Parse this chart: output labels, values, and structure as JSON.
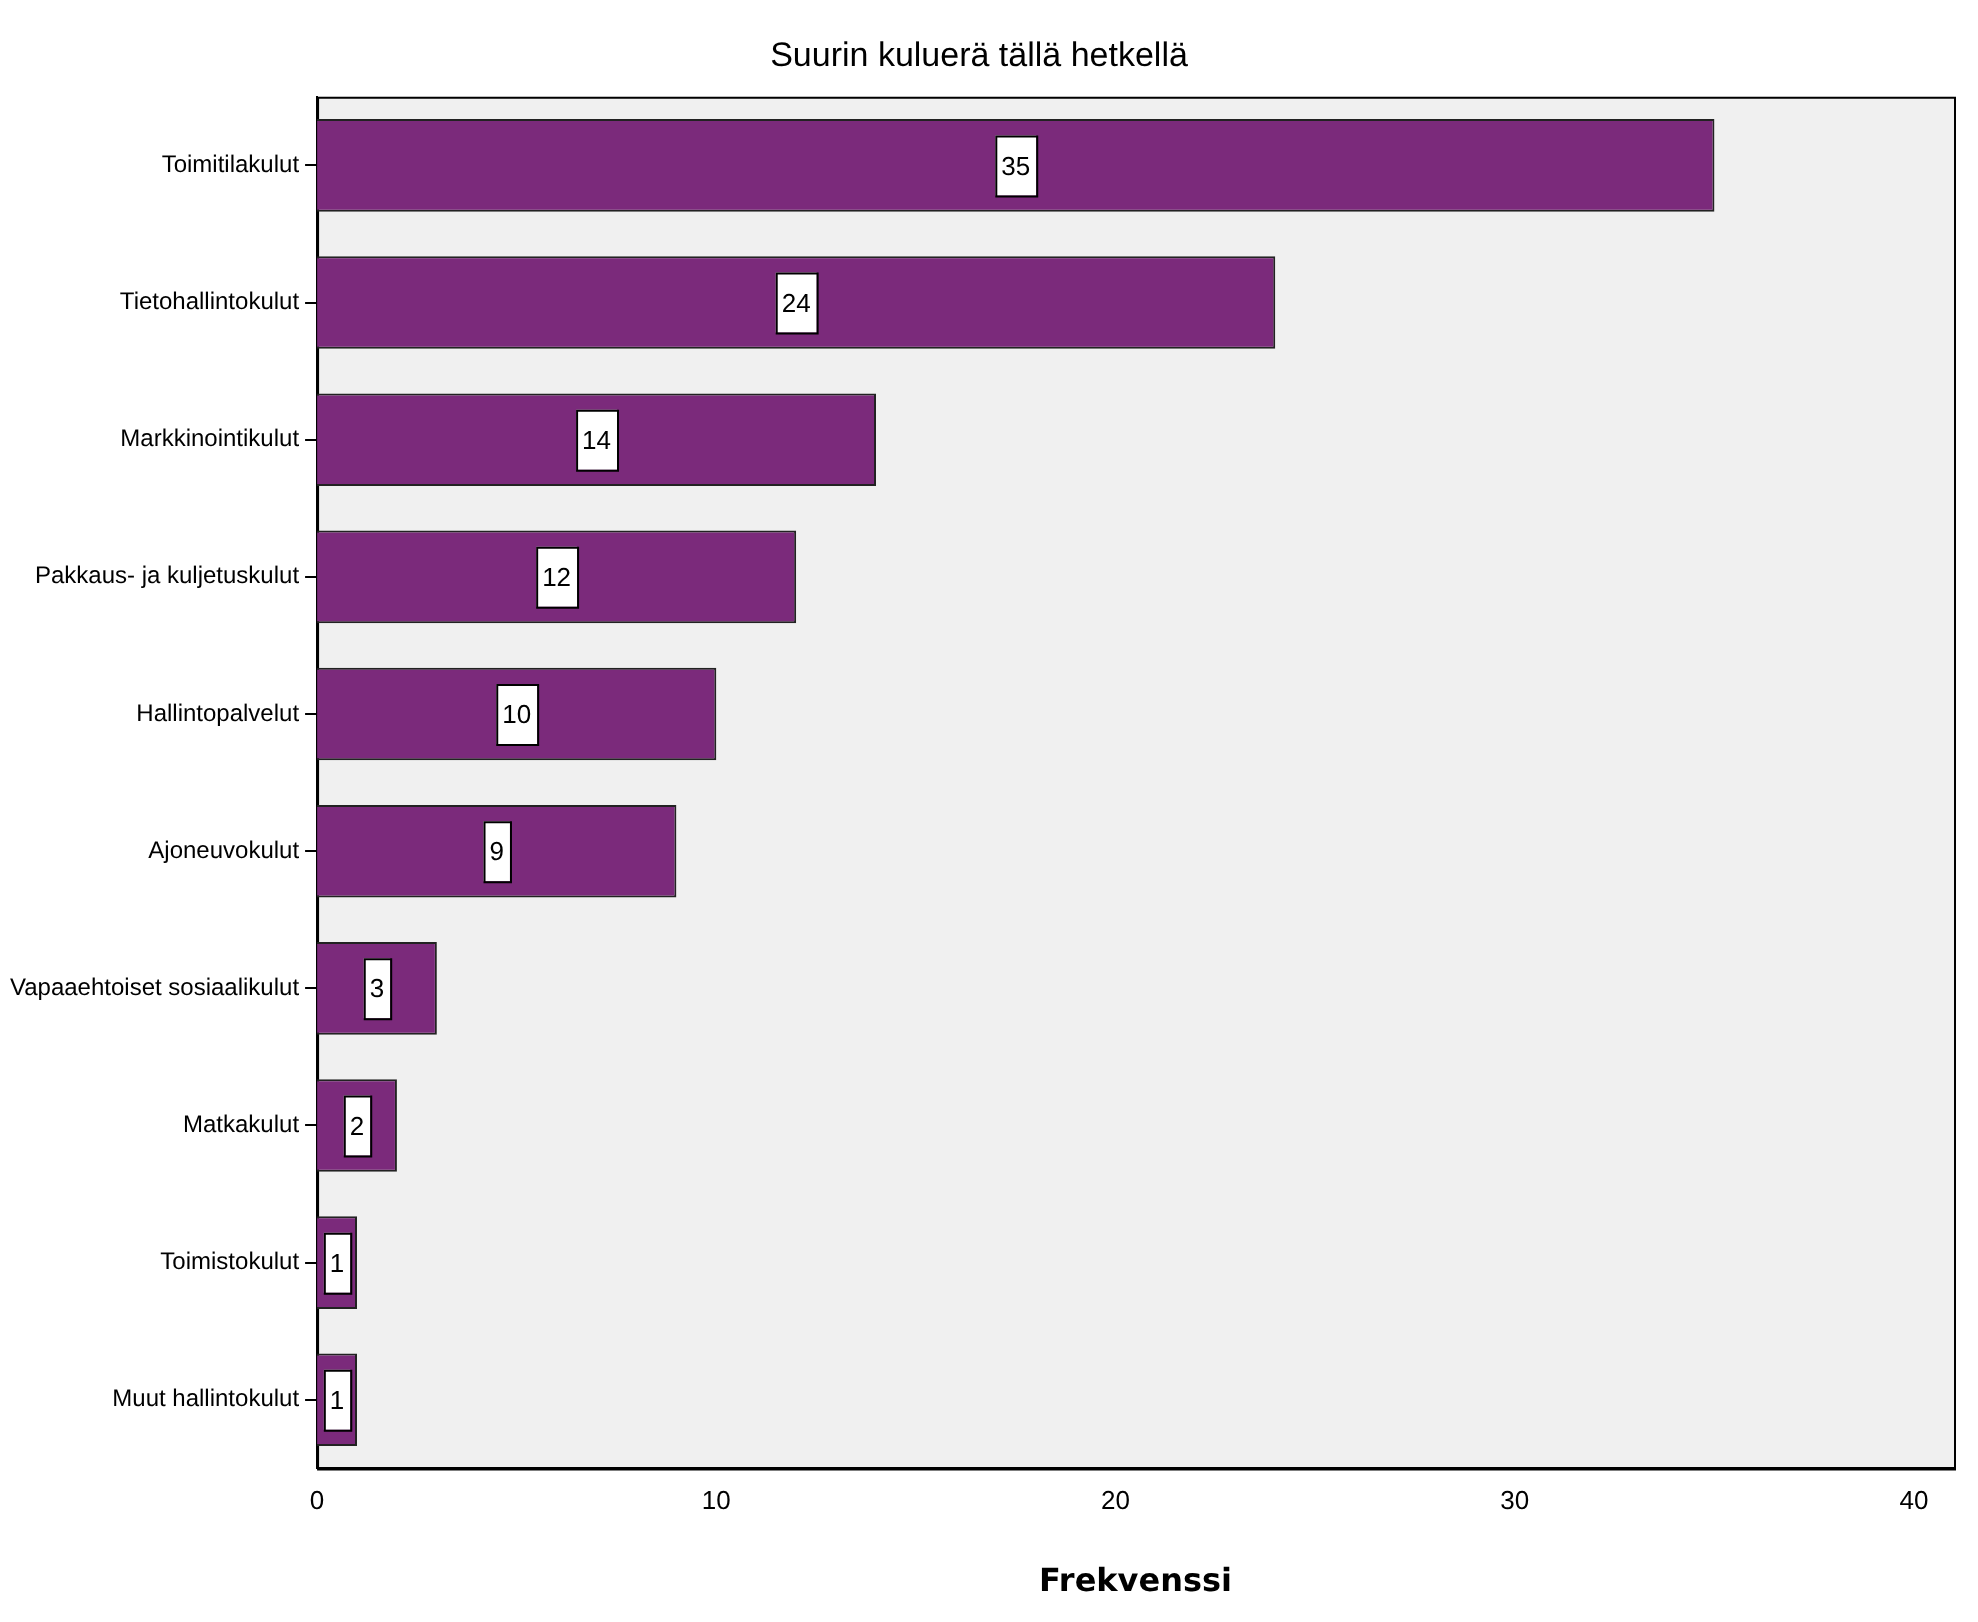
{
  "chart_data": {
    "type": "bar",
    "orientation": "horizontal",
    "title": "Suurin kuluerä tällä hetkellä",
    "xlabel": "Frekvenssi",
    "categories": [
      "Toimitilakulut",
      "Tietohallintokulut",
      "Markkinointikulut",
      "Pakkaus- ja kuljetuskulut",
      "Hallintopalvelut",
      "Ajoneuvokulut",
      "Vapaaehtoiset sosiaalikulut",
      "Matkakulut",
      "Toimistokulut",
      "Muut hallintokulut"
    ],
    "values": [
      35,
      24,
      14,
      12,
      10,
      9,
      3,
      2,
      1,
      1
    ],
    "color": "#7b2a7b",
    "xlim": [
      0,
      41
    ],
    "xticks": [
      0,
      10,
      20,
      30,
      40
    ],
    "data_labels": true,
    "grid": false,
    "legend": false
  }
}
